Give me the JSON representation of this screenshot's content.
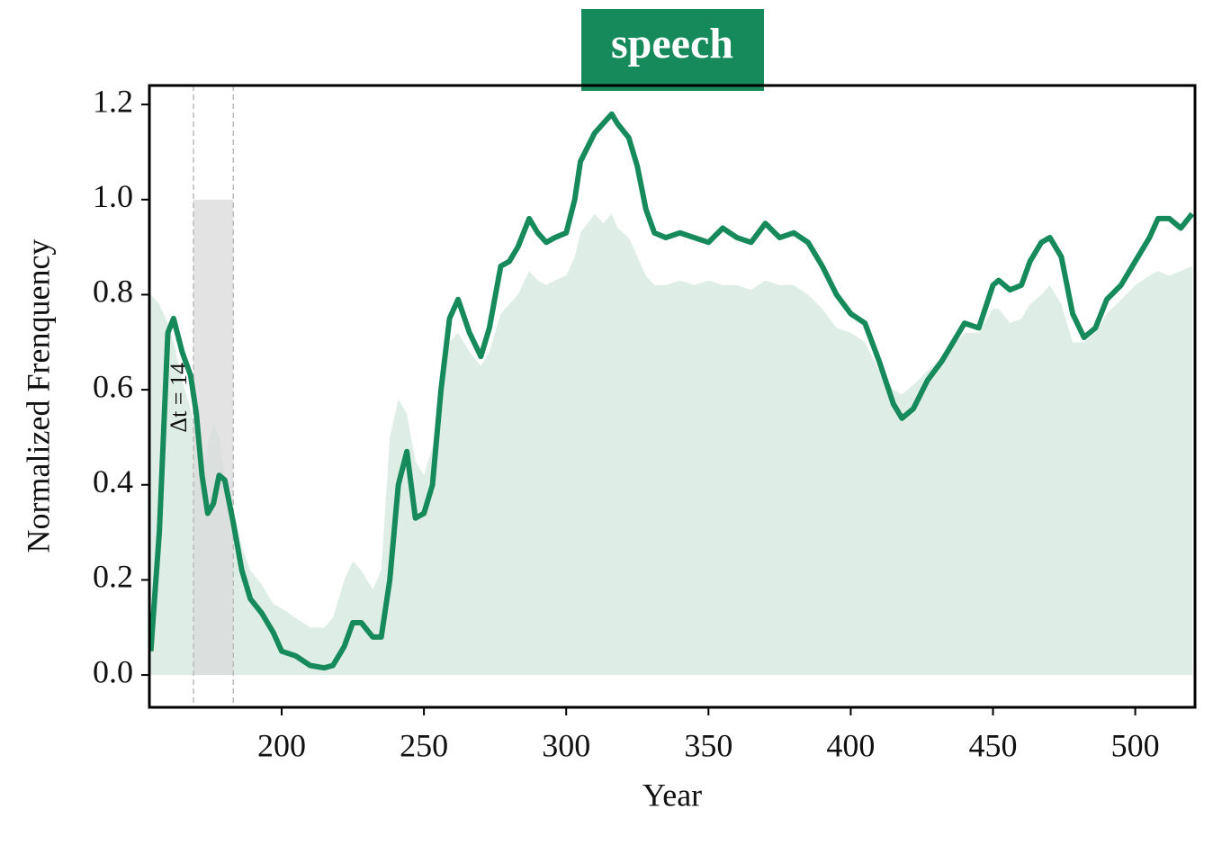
{
  "chart_data": {
    "type": "line",
    "title": "speech",
    "title_color": "#168a5a",
    "xlabel": "Year",
    "ylabel": "Normalized Frenquency",
    "xlim": [
      153.5,
      521
    ],
    "ylim": [
      -0.068,
      1.24
    ],
    "xticks": [
      200,
      250,
      300,
      350,
      400,
      450,
      500
    ],
    "yticks": [
      {
        "value": 0.0,
        "label": "0.0"
      },
      0.2,
      0.4,
      0.6,
      0.8,
      {
        "value": 1.0,
        "label": "1.0"
      },
      1.2
    ],
    "grid": false,
    "span": {
      "x": [
        169,
        183
      ],
      "y": [
        0,
        1.0
      ],
      "color": "#d9d9d9"
    },
    "annotation": "Δt = 14",
    "x": [
      154,
      157,
      160,
      162,
      165,
      168,
      170,
      172,
      174,
      176,
      178,
      180,
      183,
      186,
      189,
      193,
      197,
      200,
      205,
      210,
      215,
      218,
      222,
      225,
      228,
      232,
      235,
      238,
      241,
      244,
      247,
      250,
      253,
      256,
      259,
      262,
      266,
      270,
      273,
      277,
      280,
      283,
      287,
      290,
      293,
      296,
      300,
      303,
      305,
      310,
      313,
      316,
      318,
      322,
      325,
      328,
      331,
      335,
      340,
      345,
      350,
      355,
      360,
      365,
      370,
      375,
      380,
      385,
      390,
      395,
      400,
      405,
      410,
      415,
      418,
      422,
      427,
      432,
      437,
      440,
      445,
      450,
      452,
      456,
      460,
      463,
      467,
      470,
      474,
      478,
      482,
      486,
      490,
      495,
      500,
      505,
      508,
      512,
      516,
      520
    ],
    "series": [
      {
        "color": "#168a5a",
        "fill": false,
        "values": [
          0.05,
          0.3,
          0.72,
          0.75,
          0.68,
          0.63,
          0.55,
          0.42,
          0.34,
          0.36,
          0.42,
          0.41,
          0.32,
          0.22,
          0.16,
          0.13,
          0.09,
          0.05,
          0.04,
          0.02,
          0.015,
          0.02,
          0.06,
          0.11,
          0.11,
          0.08,
          0.08,
          0.2,
          0.4,
          0.47,
          0.33,
          0.34,
          0.4,
          0.6,
          0.75,
          0.79,
          0.72,
          0.67,
          0.73,
          0.86,
          0.87,
          0.9,
          0.96,
          0.93,
          0.91,
          0.92,
          0.93,
          1.0,
          1.08,
          1.14,
          1.16,
          1.18,
          1.16,
          1.13,
          1.07,
          0.98,
          0.93,
          0.92,
          0.93,
          0.92,
          0.91,
          0.94,
          0.92,
          0.91,
          0.95,
          0.92,
          0.93,
          0.91,
          0.86,
          0.8,
          0.76,
          0.74,
          0.66,
          0.57,
          0.54,
          0.56,
          0.62,
          0.66,
          0.71,
          0.74,
          0.73,
          0.82,
          0.83,
          0.81,
          0.82,
          0.87,
          0.91,
          0.92,
          0.88,
          0.76,
          0.71,
          0.73,
          0.79,
          0.82,
          0.87,
          0.92,
          0.96,
          0.96,
          0.94,
          0.97
        ]
      },
      {
        "color": "#deeee7",
        "fill": true,
        "values": [
          0.8,
          0.78,
          0.74,
          0.7,
          0.62,
          0.56,
          0.5,
          0.43,
          0.48,
          0.53,
          0.5,
          0.42,
          0.35,
          0.27,
          0.22,
          0.19,
          0.15,
          0.14,
          0.12,
          0.1,
          0.1,
          0.12,
          0.2,
          0.24,
          0.22,
          0.18,
          0.22,
          0.5,
          0.58,
          0.55,
          0.45,
          0.42,
          0.48,
          0.62,
          0.7,
          0.72,
          0.68,
          0.65,
          0.68,
          0.76,
          0.78,
          0.8,
          0.85,
          0.83,
          0.82,
          0.83,
          0.84,
          0.88,
          0.93,
          0.97,
          0.95,
          0.97,
          0.94,
          0.92,
          0.88,
          0.84,
          0.82,
          0.82,
          0.83,
          0.82,
          0.83,
          0.82,
          0.82,
          0.81,
          0.83,
          0.82,
          0.82,
          0.8,
          0.77,
          0.73,
          0.72,
          0.7,
          0.64,
          0.6,
          0.59,
          0.61,
          0.64,
          0.67,
          0.7,
          0.72,
          0.72,
          0.77,
          0.77,
          0.74,
          0.75,
          0.78,
          0.8,
          0.82,
          0.78,
          0.7,
          0.7,
          0.72,
          0.76,
          0.79,
          0.82,
          0.84,
          0.85,
          0.84,
          0.85,
          0.86
        ]
      }
    ]
  }
}
